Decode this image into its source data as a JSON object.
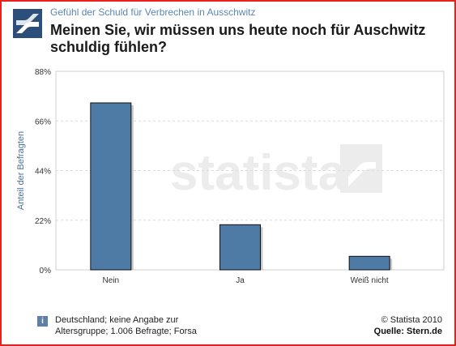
{
  "header": {
    "subtitle": "Gefühl der Schuld für Verbrechen in Ausschwitz",
    "title": "Meinen Sie, wir müssen uns heute noch für Auschwitz schuldig fühlen?"
  },
  "watermark": "statista",
  "footer": {
    "note": "Deutschland; keine Angabe zur Altersgruppe; 1.006 Befragte; Forsa",
    "note_icon": "i",
    "copyright": "© Statista 2010",
    "source": "Quelle: Stern.de"
  },
  "colors": {
    "bar": "#4e7aa6",
    "frame": "#e8211b",
    "accent": "#5a86b5"
  },
  "chart_data": {
    "type": "bar",
    "categories": [
      "Nein",
      "Ja",
      "Weiß nicht"
    ],
    "values": [
      74,
      20,
      6
    ],
    "ylabel": "Anteil der Befragten",
    "xlabel": "",
    "ylim": [
      0,
      88
    ],
    "yticks": [
      0,
      22,
      44,
      66,
      88
    ],
    "ytick_labels": [
      "0%",
      "22%",
      "44%",
      "66%",
      "88%"
    ],
    "grid": true
  }
}
